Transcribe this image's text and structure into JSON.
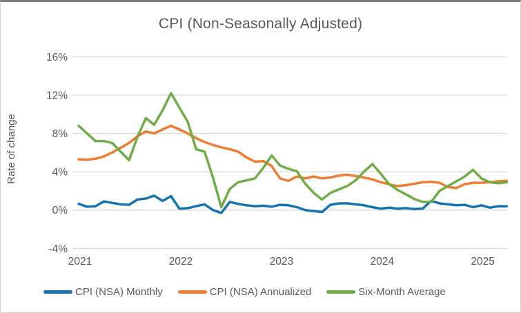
{
  "chart_data": {
    "type": "line",
    "title": "CPI (Non-Seasonally Adjusted)",
    "ylabel": "Rate of change",
    "x_unit": "month",
    "x_start": "2021-01",
    "x_end": "2025-04",
    "points_per_series": 52,
    "grid": true,
    "legend_position": "bottom",
    "axis_text_color": "#595959",
    "gridline_color": "#d9d9d9",
    "background_color": "#ffffff",
    "ylim": [
      -4,
      16
    ],
    "x_ticks": [
      {
        "index": 0,
        "label": "2021"
      },
      {
        "index": 12,
        "label": "2022"
      },
      {
        "index": 24,
        "label": "2023"
      },
      {
        "index": 36,
        "label": "2024"
      },
      {
        "index": 48,
        "label": "2025"
      }
    ],
    "y_ticks": [
      {
        "value": -4,
        "label": "-4%"
      },
      {
        "value": 0,
        "label": "0%"
      },
      {
        "value": 4,
        "label": "4%"
      },
      {
        "value": 8,
        "label": "8%"
      },
      {
        "value": 12,
        "label": "12%"
      },
      {
        "value": 16,
        "label": "16%"
      }
    ],
    "series": [
      {
        "name": "CPI (NSA) Monthly",
        "color": "#1673b1",
        "values": [
          0.65,
          0.35,
          0.4,
          0.9,
          0.75,
          0.6,
          0.55,
          1.1,
          1.2,
          1.5,
          0.95,
          1.45,
          0.15,
          0.2,
          0.4,
          0.6,
          0.0,
          -0.3,
          0.85,
          0.65,
          0.5,
          0.4,
          0.45,
          0.35,
          0.55,
          0.5,
          0.3,
          0.0,
          -0.1,
          -0.2,
          0.55,
          0.7,
          0.7,
          0.6,
          0.5,
          0.3,
          0.15,
          0.25,
          0.15,
          0.2,
          0.1,
          0.15,
          0.95,
          0.7,
          0.6,
          0.5,
          0.55,
          0.3,
          0.5,
          0.25,
          0.4,
          0.4
        ]
      },
      {
        "name": "CPI (NSA) Annualized",
        "color": "#ed7d31",
        "values": [
          5.3,
          5.25,
          5.35,
          5.6,
          6.0,
          6.5,
          7.0,
          7.7,
          8.2,
          8.0,
          8.4,
          8.8,
          8.4,
          8.0,
          7.5,
          7.1,
          6.8,
          6.55,
          6.35,
          6.1,
          5.5,
          5.05,
          5.1,
          4.6,
          3.3,
          3.05,
          3.5,
          3.3,
          3.5,
          3.3,
          3.4,
          3.6,
          3.7,
          3.55,
          3.4,
          3.2,
          2.9,
          2.7,
          2.5,
          2.6,
          2.75,
          2.9,
          2.95,
          2.85,
          2.4,
          2.3,
          2.7,
          2.85,
          2.85,
          2.9,
          3.0,
          3.05
        ]
      },
      {
        "name": "Six-Month Average",
        "color": "#70ad47",
        "values": [
          8.8,
          8.0,
          7.2,
          7.2,
          7.0,
          6.1,
          5.2,
          7.6,
          9.6,
          8.9,
          10.4,
          12.2,
          10.7,
          9.2,
          6.35,
          6.1,
          3.4,
          0.3,
          2.2,
          2.9,
          3.1,
          3.3,
          4.4,
          5.7,
          4.65,
          4.3,
          4.05,
          2.75,
          1.8,
          1.1,
          1.8,
          2.15,
          2.5,
          3.1,
          4.0,
          4.8,
          3.8,
          2.7,
          2.1,
          1.65,
          1.15,
          0.85,
          0.85,
          2.0,
          2.5,
          3.0,
          3.5,
          4.2,
          3.3,
          2.9,
          2.8,
          2.9
        ]
      }
    ]
  }
}
